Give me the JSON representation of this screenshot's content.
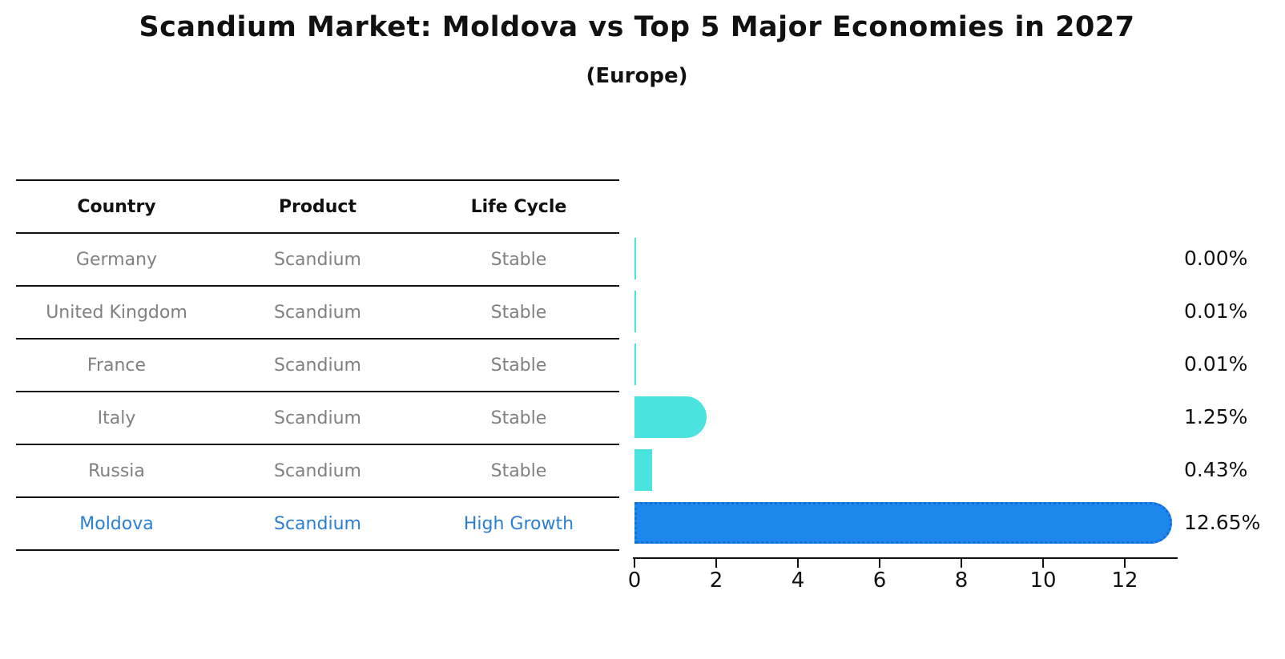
{
  "title": "Scandium Market: Moldova vs Top 5 Major Economies in 2027",
  "subtitle": "(Europe)",
  "table": {
    "headers": [
      "Country",
      "Product",
      "Life Cycle"
    ],
    "rows": [
      {
        "country": "Germany",
        "product": "Scandium",
        "life_cycle": "Stable",
        "highlight": false
      },
      {
        "country": "United Kingdom",
        "product": "Scandium",
        "life_cycle": "Stable",
        "highlight": false
      },
      {
        "country": "France",
        "product": "Scandium",
        "life_cycle": "Stable",
        "highlight": false
      },
      {
        "country": "Italy",
        "product": "Scandium",
        "life_cycle": "Stable",
        "highlight": false
      },
      {
        "country": "Russia",
        "product": "Scandium",
        "life_cycle": "Stable",
        "highlight": false
      },
      {
        "country": "Moldova",
        "product": "Scandium",
        "life_cycle": "High Growth",
        "highlight": true
      }
    ]
  },
  "chart_data": {
    "type": "bar",
    "orientation": "horizontal",
    "categories": [
      "Germany",
      "United Kingdom",
      "France",
      "Italy",
      "Russia",
      "Moldova"
    ],
    "values": [
      0.0,
      0.01,
      0.01,
      1.25,
      0.43,
      12.65
    ],
    "value_labels": [
      "0.00%",
      "0.01%",
      "0.01%",
      "1.25%",
      "0.43%",
      "12.65%"
    ],
    "highlight_index": 5,
    "x_ticks": [
      0,
      2,
      4,
      6,
      8,
      10,
      12
    ],
    "xlim": [
      0,
      13.3
    ],
    "grid": false,
    "legend": "none",
    "bar_color": "#4ae3e0",
    "highlight_bar_color": "#1e87ee",
    "highlight_text_color": "#2a7fd4",
    "muted_text_color": "#808080"
  }
}
